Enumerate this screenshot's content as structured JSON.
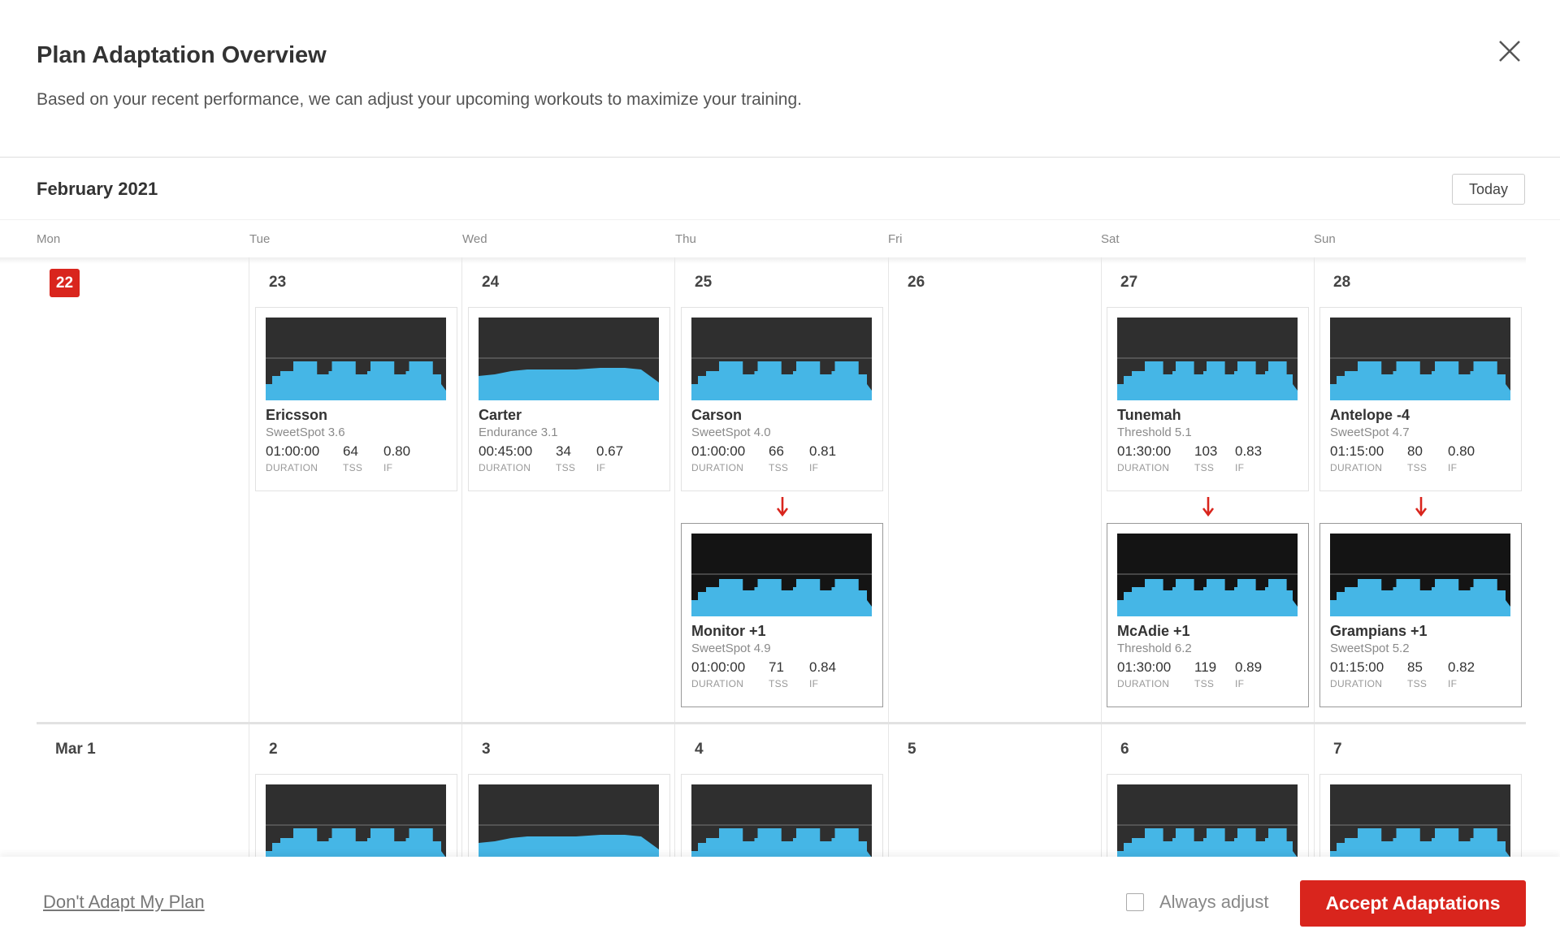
{
  "header": {
    "title": "Plan Adaptation Overview",
    "subtitle": "Based on your recent performance, we can adjust your upcoming workouts to maximize your training."
  },
  "calendar": {
    "month": "February 2021",
    "today_button": "Today",
    "weekdays": [
      "Mon",
      "Tue",
      "Wed",
      "Thu",
      "Fri",
      "Sat",
      "Sun"
    ],
    "metric_labels": [
      "DURATION",
      "TSS",
      "IF"
    ],
    "weeks": [
      {
        "days": [
          {
            "date": "22",
            "today": true
          },
          {
            "date": "23",
            "workout": {
              "name": "Ericsson",
              "level": "SweetSpot 3.6",
              "duration": "01:00:00",
              "tss": 64,
              "if": "0.80"
            }
          },
          {
            "date": "24",
            "workout": {
              "name": "Carter",
              "level": "Endurance 3.1",
              "duration": "00:45:00",
              "tss": 34,
              "if": "0.67"
            }
          },
          {
            "date": "25",
            "workout": {
              "name": "Carson",
              "level": "SweetSpot 4.0",
              "duration": "01:00:00",
              "tss": 66,
              "if": "0.81"
            },
            "adaptation": {
              "name": "Monitor +1",
              "level": "SweetSpot 4.9",
              "duration": "01:00:00",
              "tss": 71,
              "if": "0.84"
            }
          },
          {
            "date": "26"
          },
          {
            "date": "27",
            "workout": {
              "name": "Tunemah",
              "level": "Threshold 5.1",
              "duration": "01:30:00",
              "tss": 103,
              "if": "0.83"
            },
            "adaptation": {
              "name": "McAdie +1",
              "level": "Threshold 6.2",
              "duration": "01:30:00",
              "tss": 119,
              "if": "0.89"
            }
          },
          {
            "date": "28",
            "workout": {
              "name": "Antelope -4",
              "level": "SweetSpot 4.7",
              "duration": "01:15:00",
              "tss": 80,
              "if": "0.80"
            },
            "adaptation": {
              "name": "Grampians +1",
              "level": "SweetSpot 5.2",
              "duration": "01:15:00",
              "tss": 85,
              "if": "0.82"
            }
          }
        ]
      },
      {
        "days": [
          {
            "date": "Mar 1"
          },
          {
            "date": "2",
            "workout": true
          },
          {
            "date": "3",
            "workout": true
          },
          {
            "date": "4",
            "workout": true
          },
          {
            "date": "5"
          },
          {
            "date": "6",
            "workout": true
          },
          {
            "date": "7",
            "workout": true
          }
        ]
      }
    ]
  },
  "footer": {
    "decline": "Don't Adapt My Plan",
    "always_adjust": "Always adjust",
    "accept": "Accept Adaptations"
  }
}
